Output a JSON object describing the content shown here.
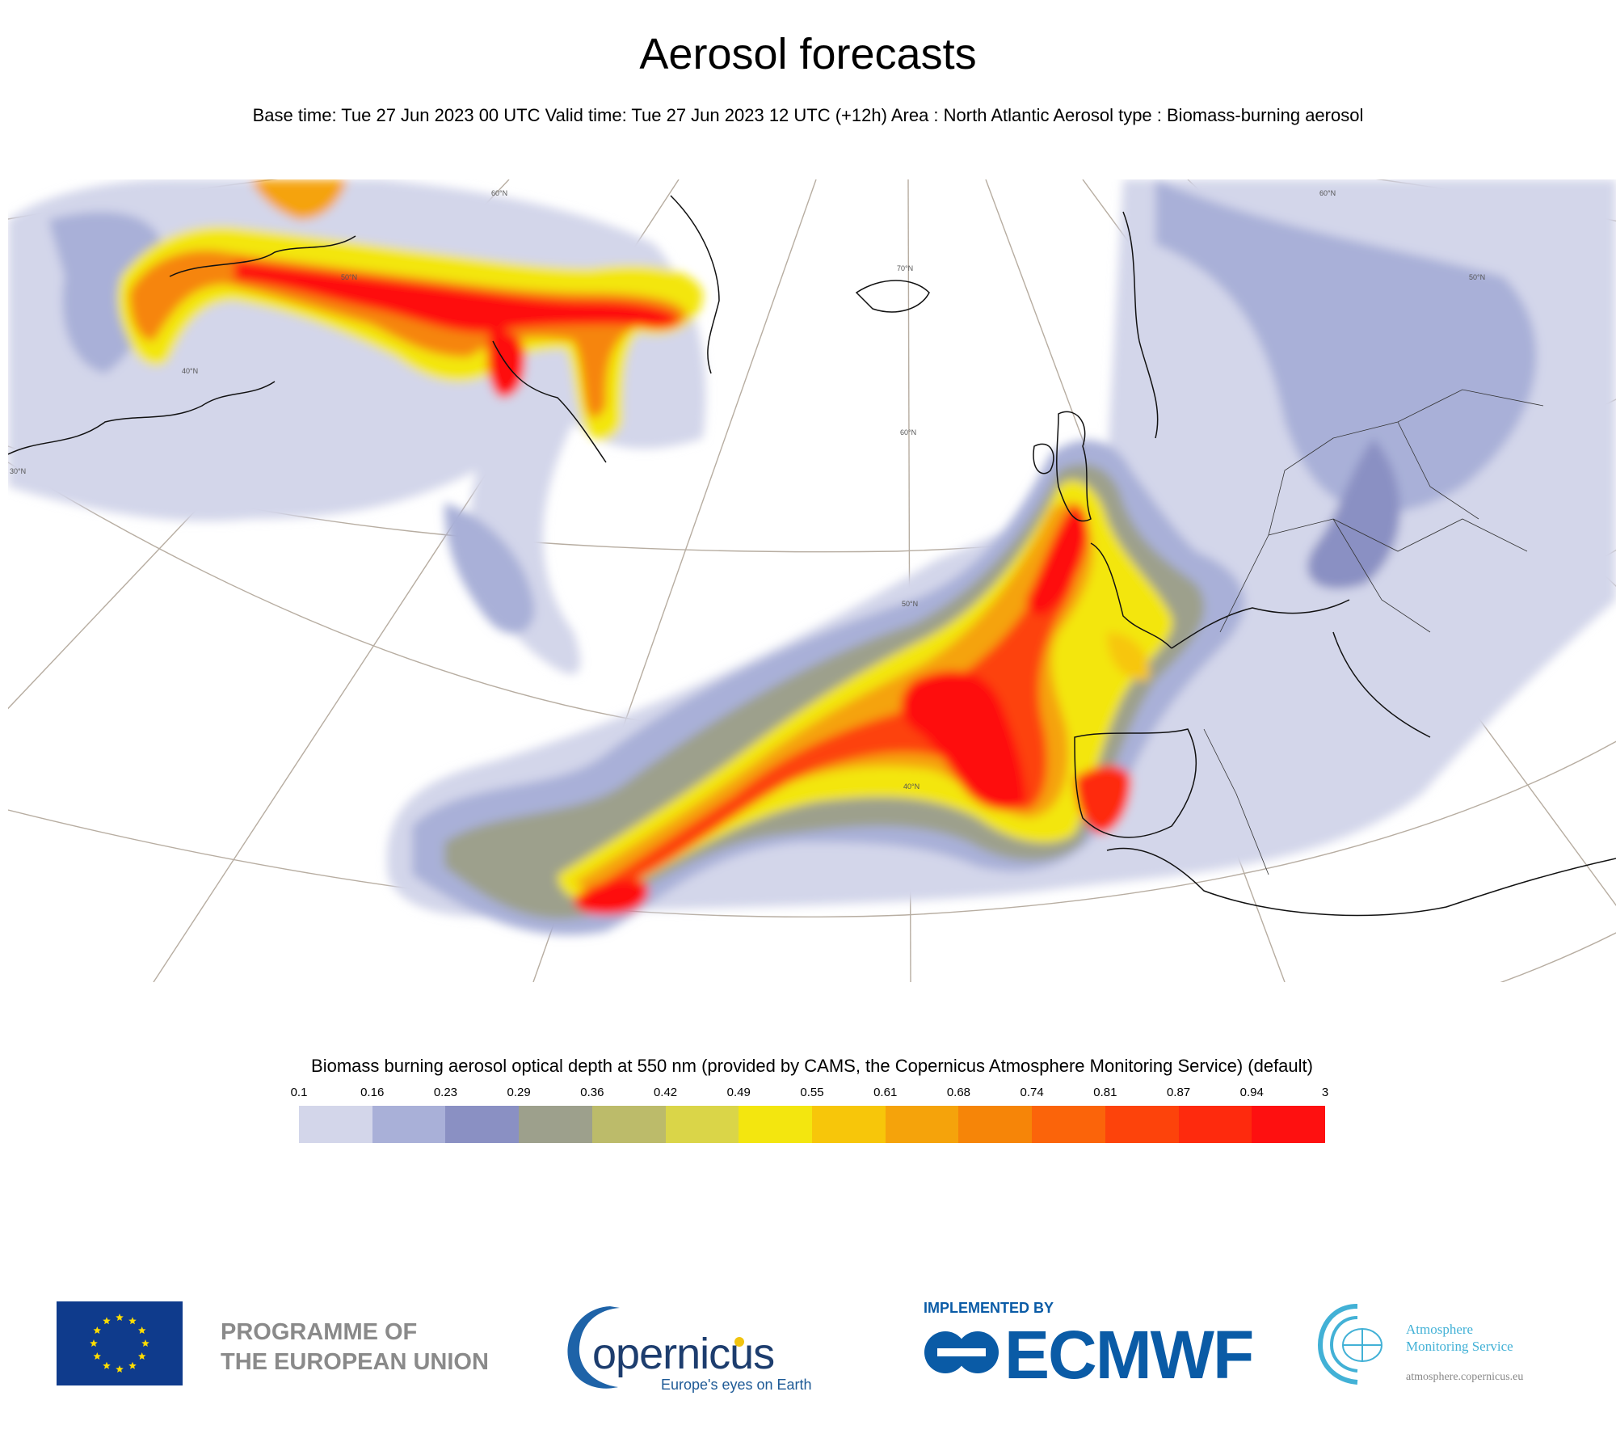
{
  "header": {
    "title": "Aerosol forecasts",
    "subtitle": "Base time: Tue 27 Jun 2023 00 UTC Valid time: Tue 27 Jun 2023 12 UTC (+12h) Area : North Atlantic Aerosol type : Biomass-burning aerosol"
  },
  "map": {
    "latitude_labels": [
      "70°N",
      "60°N",
      "50°N",
      "40°N",
      "30°N"
    ],
    "top_labels": [
      "60°N",
      "60°N",
      "50°N"
    ],
    "plumes": [
      "North America to Greenland",
      "Bay of Biscay to Azores",
      "Iberian Peninsula"
    ]
  },
  "legend": {
    "title": "Biomass burning aerosol optical depth at 550 nm (provided by CAMS, the Copernicus Atmosphere Monitoring Service) (default)",
    "ticks": [
      "0.1",
      "0.16",
      "0.23",
      "0.29",
      "0.36",
      "0.42",
      "0.49",
      "0.55",
      "0.61",
      "0.68",
      "0.74",
      "0.81",
      "0.87",
      "0.94",
      "3"
    ],
    "colors": [
      "#d3d6ea",
      "#a9b0d8",
      "#8a90c3",
      "#9da08c",
      "#bcbb6a",
      "#dad548",
      "#f3e60f",
      "#f7c60a",
      "#f5a30b",
      "#f68508",
      "#fb640a",
      "#fd430b",
      "#fe2a0d",
      "#fe1010"
    ]
  },
  "footer": {
    "eu_line1": "PROGRAMME OF",
    "eu_line2": "THE EUROPEAN UNION",
    "copernicus_word": "opernicus",
    "copernicus_tag": "Europe's eyes on Earth",
    "implemented_by": "IMPLEMENTED BY",
    "ecmwf": "ECMWF",
    "cams_line1": "Atmosphere",
    "cams_line2": "Monitoring Service",
    "cams_url": "atmosphere.copernicus.eu"
  }
}
